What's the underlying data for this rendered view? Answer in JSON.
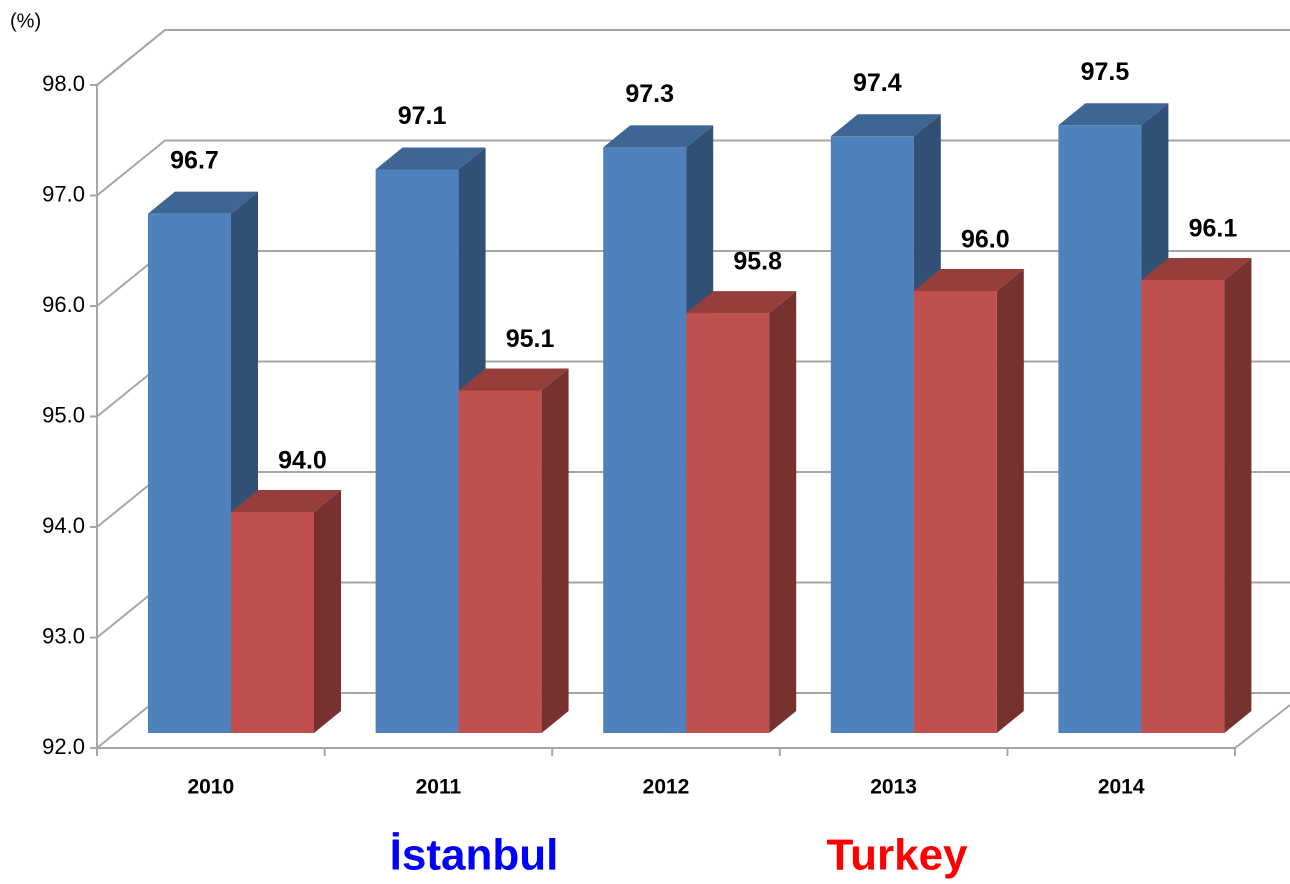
{
  "chart_data": {
    "type": "bar3d",
    "y_axis_label": "(%)",
    "categories": [
      "2010",
      "2011",
      "2012",
      "2013",
      "2014"
    ],
    "series": [
      {
        "name": "İstanbul",
        "color": "#4f81bd",
        "values": [
          96.7,
          97.1,
          97.3,
          97.4,
          97.5
        ],
        "value_labels": [
          "96.7",
          "97.1",
          "97.3",
          "97.4",
          "97.5"
        ]
      },
      {
        "name": "Turkey",
        "color": "#c0504d",
        "values": [
          94.0,
          95.1,
          95.8,
          96.0,
          96.1
        ],
        "value_labels": [
          "94.0",
          "95.1",
          "95.8",
          "96.0",
          "96.1"
        ]
      }
    ],
    "ylim": [
      92,
      98
    ],
    "yticks": [
      {
        "value": 92,
        "label": "92.0"
      },
      {
        "value": 93,
        "label": "93.0"
      },
      {
        "value": 94,
        "label": "94.0"
      },
      {
        "value": 95,
        "label": "95.0"
      },
      {
        "value": 96,
        "label": "96.0"
      },
      {
        "value": 97,
        "label": "97.0"
      },
      {
        "value": 98,
        "label": "98.0"
      }
    ],
    "grid": true
  }
}
